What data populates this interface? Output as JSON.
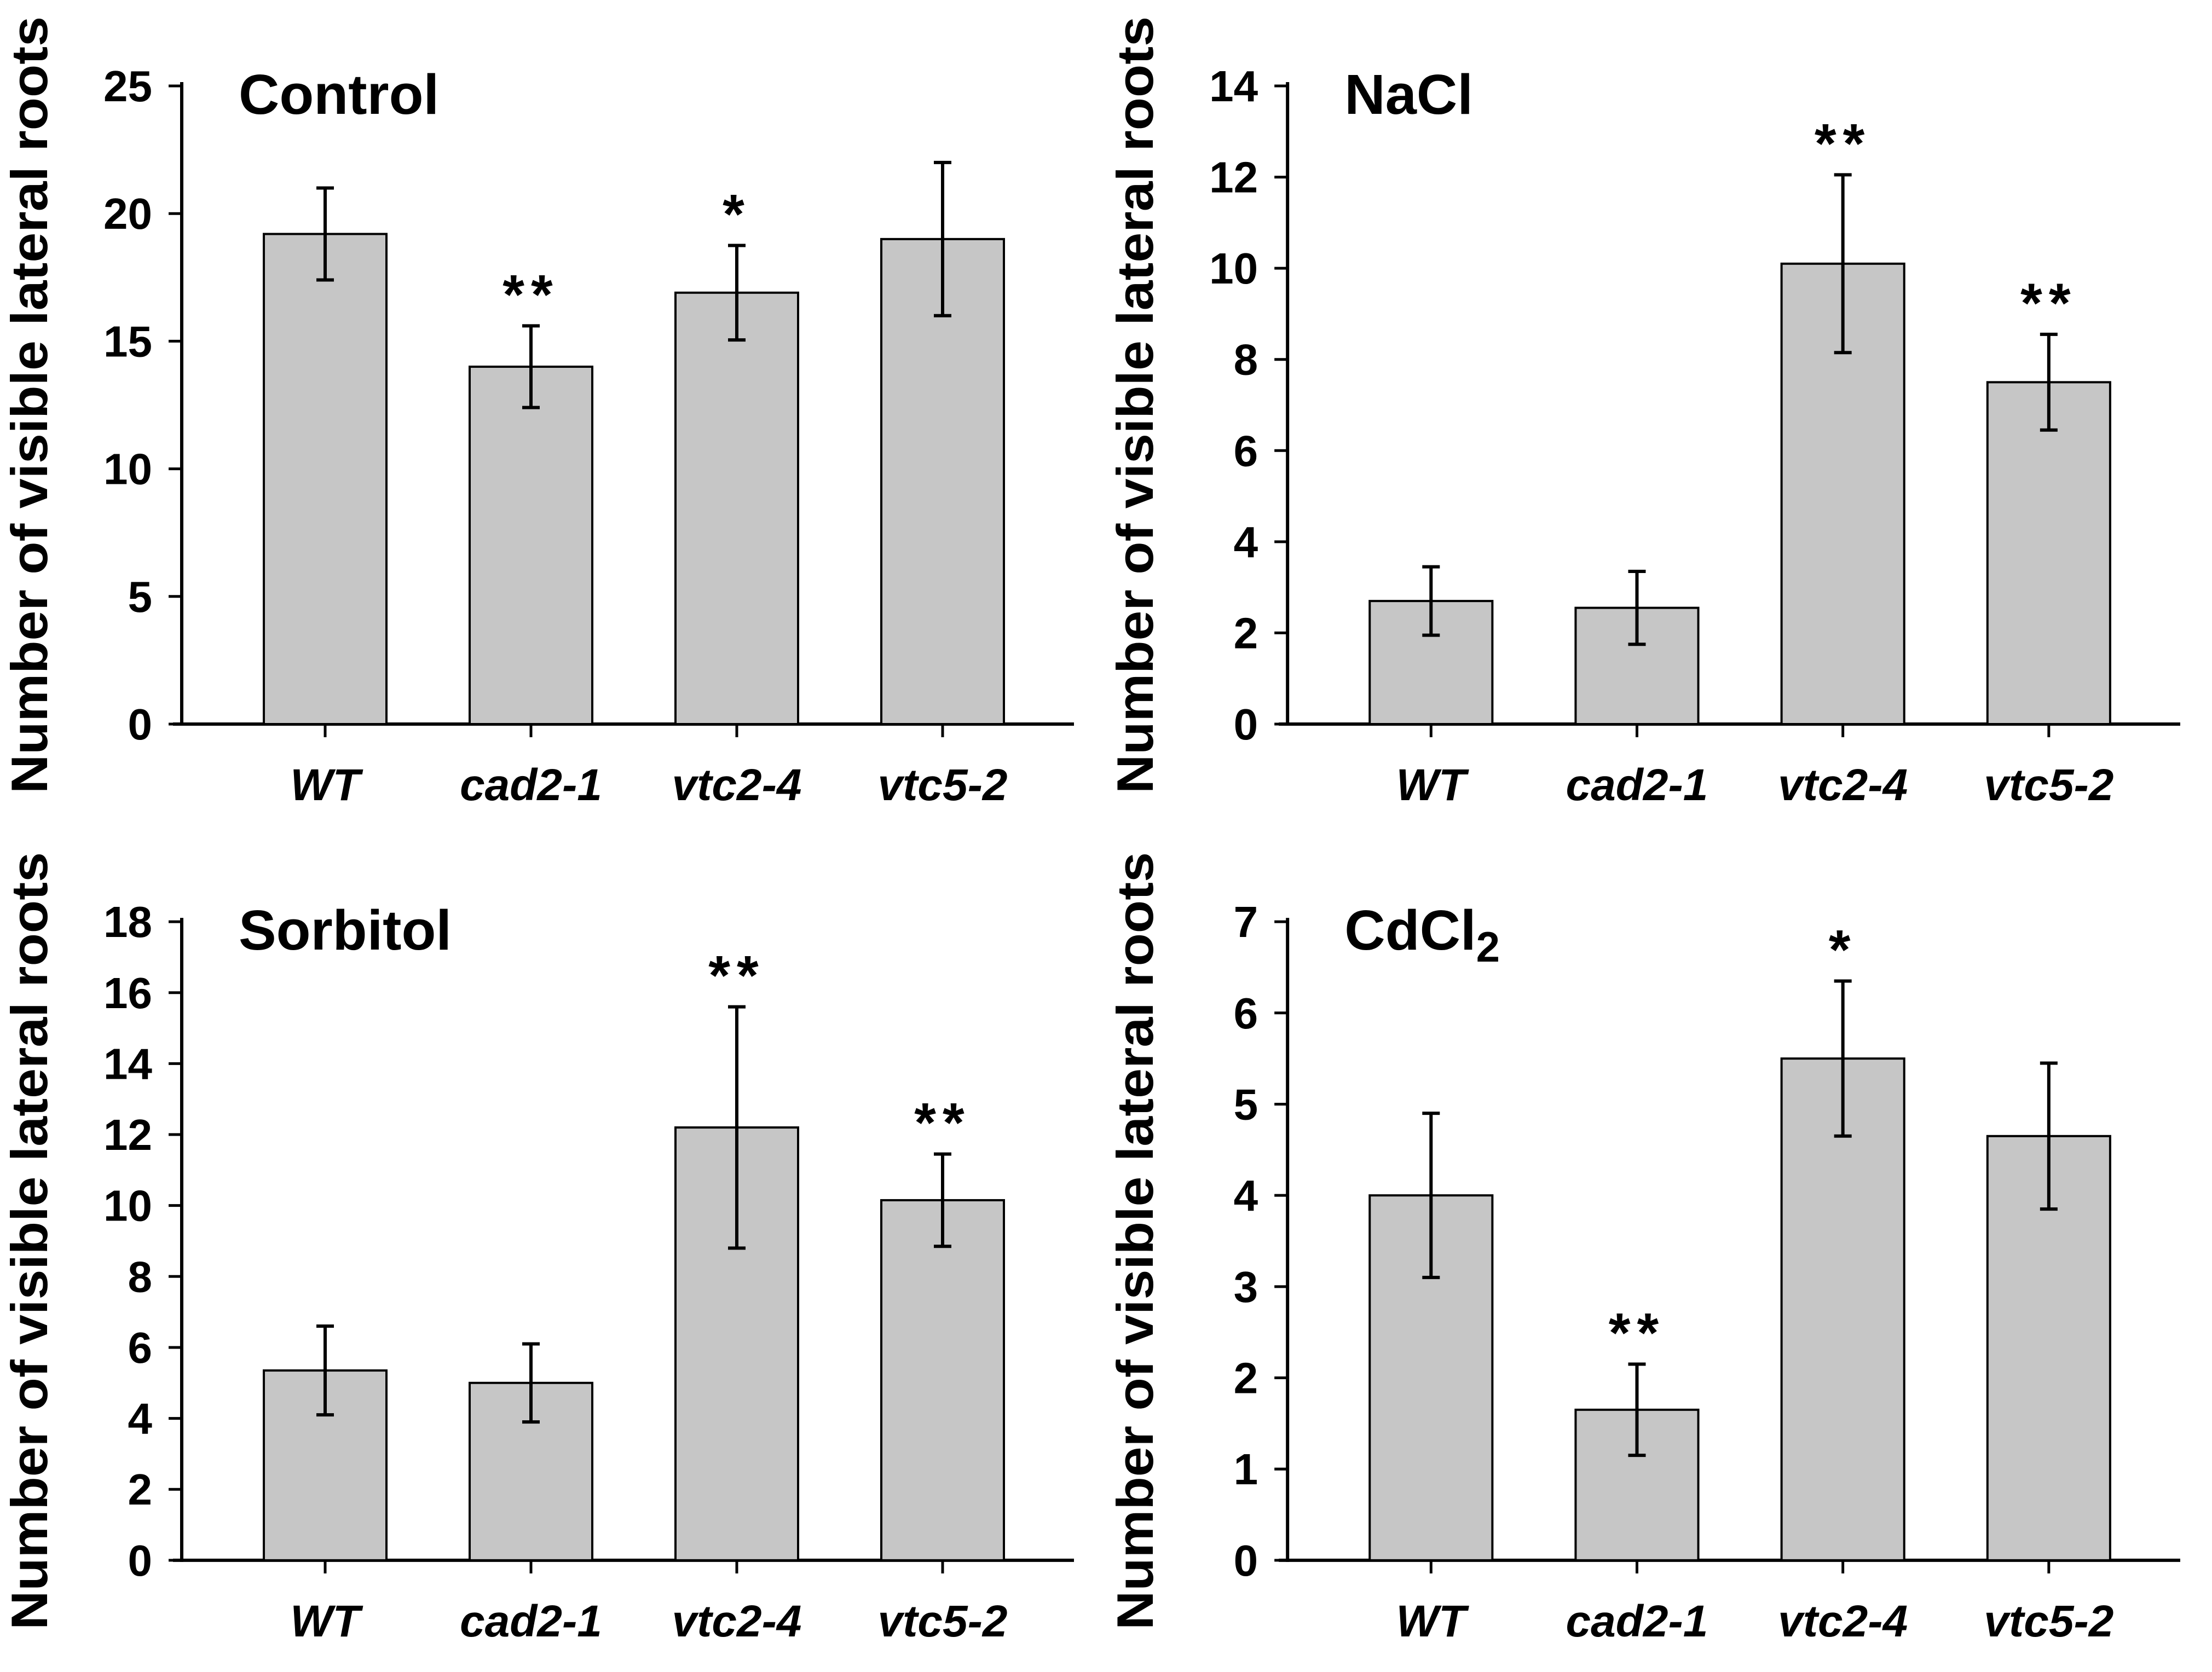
{
  "figure": {
    "background": "#ffffff",
    "text_color": "#000000",
    "ylabel": "Number of visible lateral roots",
    "categories": [
      "WT",
      "cad2-1",
      "vtc2-4",
      "vtc5-2"
    ]
  },
  "style": {
    "bar_fill": "#c6c6c6",
    "bar_stroke": "#000000",
    "axis_color": "#000000"
  },
  "chart_data": [
    {
      "type": "bar",
      "title": "Control",
      "title_sub": "",
      "ylabel": "Number of visible lateral roots",
      "categories": [
        "WT",
        "cad2-1",
        "vtc2-4",
        "vtc5-2"
      ],
      "values": [
        19.2,
        14.0,
        16.9,
        19.0
      ],
      "errors": [
        1.8,
        1.6,
        1.85,
        3.0
      ],
      "significance": [
        "",
        "**",
        "*",
        ""
      ],
      "ylim": [
        0,
        25
      ],
      "ytick_step": 5,
      "grid": false,
      "legend": "none"
    },
    {
      "type": "bar",
      "title": "NaCl",
      "title_sub": "",
      "ylabel": "Number of visible lateral roots",
      "categories": [
        "WT",
        "cad2-1",
        "vtc2-4",
        "vtc5-2"
      ],
      "values": [
        2.7,
        2.55,
        10.1,
        7.5
      ],
      "errors": [
        0.75,
        0.8,
        1.95,
        1.05
      ],
      "significance": [
        "",
        "",
        "**",
        "**"
      ],
      "ylim": [
        0,
        14
      ],
      "ytick_step": 2,
      "grid": false,
      "legend": "none"
    },
    {
      "type": "bar",
      "title": "Sorbitol",
      "title_sub": "",
      "ylabel": "Number of visible lateral roots",
      "categories": [
        "WT",
        "cad2-1",
        "vtc2-4",
        "vtc5-2"
      ],
      "values": [
        5.35,
        5.0,
        12.2,
        10.15
      ],
      "errors": [
        1.25,
        1.1,
        3.4,
        1.3
      ],
      "significance": [
        "",
        "",
        "**",
        "**"
      ],
      "ylim": [
        0,
        18
      ],
      "ytick_step": 2,
      "grid": false,
      "legend": "none"
    },
    {
      "type": "bar",
      "title": "CdCl",
      "title_sub": "2",
      "ylabel": "Number of visible lateral roots",
      "categories": [
        "WT",
        "cad2-1",
        "vtc2-4",
        "vtc5-2"
      ],
      "values": [
        4.0,
        1.65,
        5.5,
        4.65
      ],
      "errors": [
        0.9,
        0.5,
        0.85,
        0.8
      ],
      "significance": [
        "",
        "**",
        "*",
        ""
      ],
      "ylim": [
        0,
        7
      ],
      "ytick_step": 1,
      "grid": false,
      "legend": "none"
    }
  ]
}
